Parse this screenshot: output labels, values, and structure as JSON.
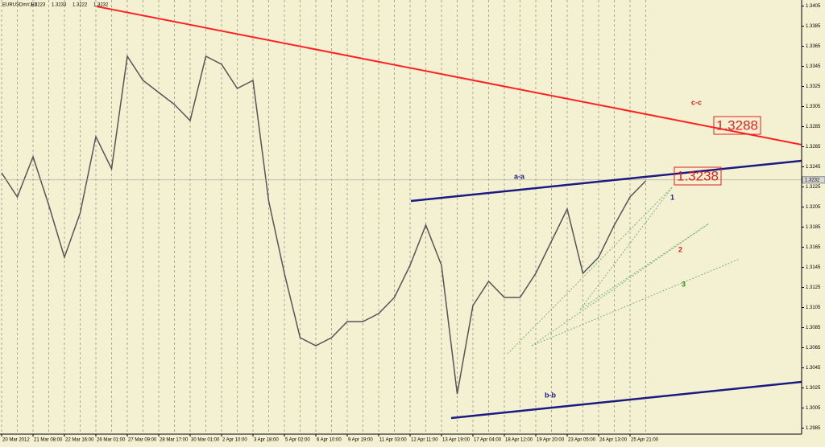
{
  "chart_data": {
    "type": "line",
    "symbol": "EURUSDm#,H1",
    "ohlc": [
      1.3223,
      1.3233,
      1.3222,
      1.3232
    ],
    "bid": 1.3232,
    "categories": [
      "20 Mar 2012",
      null,
      "21 Mar 08:00",
      null,
      "22 Mar 16:00",
      null,
      "26 Mar 01:00",
      null,
      "27 Mar 09:00",
      null,
      "28 Mar 17:00",
      null,
      "30 Mar 01:00",
      null,
      "2 Apr 10:00",
      null,
      "3 Apr 18:00",
      null,
      "5 Apr 02:00",
      null,
      "6 Apr 10:00",
      null,
      "9 Apr 19:00",
      null,
      "11 Apr 03:00",
      null,
      "12 Apr 11:00",
      null,
      "13 Apr 19:00",
      null,
      "17 Apr 04:00",
      null,
      "18 Apr 12:00",
      null,
      "19 Apr 20:00",
      null,
      "23 Apr 05:00",
      null,
      "24 Apr 13:00",
      null,
      "25 Apr 21:00",
      null
    ],
    "series": [
      {
        "name": "EURUSDm#",
        "color": "#555555",
        "values": [
          1.3239,
          1.3215,
          1.3255,
          1.3207,
          1.3155,
          1.3199,
          1.3275,
          1.3243,
          1.3355,
          1.3331,
          1.3319,
          1.3307,
          1.3291,
          1.3355,
          1.3347,
          1.3323,
          1.3331,
          1.3211,
          1.3139,
          1.3075,
          1.3067,
          1.3075,
          1.3091,
          1.3091,
          1.3099,
          1.3115,
          1.3147,
          1.3187,
          1.3147,
          1.3019,
          1.3107,
          1.3131,
          1.3115,
          1.3115,
          1.3139,
          1.3171,
          1.3203,
          1.3139,
          1.3155,
          1.3187,
          1.3215,
          1.3231
        ]
      }
    ],
    "ylim": [
      1.2979,
      1.3411
    ],
    "yticks": [
      1.3405,
      1.3385,
      1.3365,
      1.3345,
      1.3325,
      1.3305,
      1.3285,
      1.3265,
      1.3245,
      1.3225,
      1.3205,
      1.3185,
      1.3165,
      1.3145,
      1.3125,
      1.3105,
      1.3085,
      1.3065,
      1.3045,
      1.3025,
      1.3005,
      1.2985
    ],
    "annotations": [
      "c-c",
      "a-a",
      "b-b",
      "1",
      "2",
      "3",
      "1.3288",
      "1.3238"
    ],
    "grid": true
  }
}
